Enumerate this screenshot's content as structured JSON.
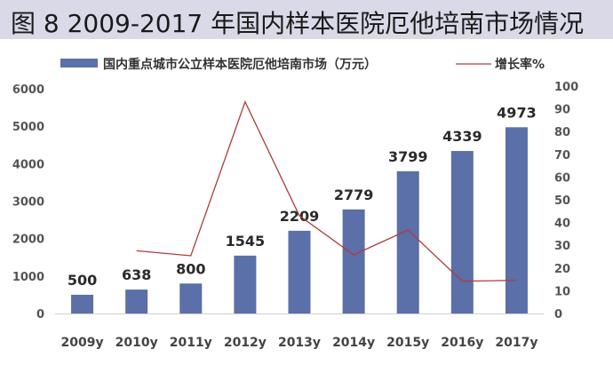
{
  "title": "图 8 2009-2017 年国内样本医院厄他培南市场情况",
  "chart_data": {
    "type": "bar",
    "categories": [
      "2009y",
      "2010y",
      "2011y",
      "2012y",
      "2013y",
      "2014y",
      "2015y",
      "2016y",
      "2017y"
    ],
    "series": [
      {
        "name": "国内重点城市公立样本医院厄他培南市场（万元）",
        "type": "bar",
        "axis": "left",
        "color": "#5b6fa8",
        "values": [
          500,
          638,
          800,
          1545,
          2209,
          2779,
          3799,
          4339,
          4973
        ],
        "labels": [
          "500",
          "638",
          "800",
          "1545",
          "2209",
          "2779",
          "3799",
          "4339",
          "4973"
        ]
      },
      {
        "name": "增长率%",
        "type": "line",
        "axis": "right",
        "color": "#b03a3a",
        "values": [
          null,
          27.6,
          25.4,
          93.1,
          43.0,
          25.8,
          36.7,
          14.2,
          14.6
        ]
      }
    ],
    "y_left": {
      "min": 0,
      "max": 6000,
      "ticks": [
        0,
        1000,
        2000,
        3000,
        4000,
        5000,
        6000
      ],
      "tick_labels": [
        "0",
        "1000",
        "2000",
        "3000",
        "4000",
        "5000",
        "6000"
      ]
    },
    "y_right": {
      "min": 0,
      "max": 100,
      "ticks": [
        0,
        10,
        20,
        30,
        40,
        50,
        60,
        70,
        80,
        90,
        100
      ],
      "tick_labels": [
        "0",
        "10",
        "20",
        "30",
        "40",
        "50",
        "60",
        "70",
        "80",
        "90",
        "100"
      ]
    },
    "legend_position": "top",
    "grid": false
  }
}
